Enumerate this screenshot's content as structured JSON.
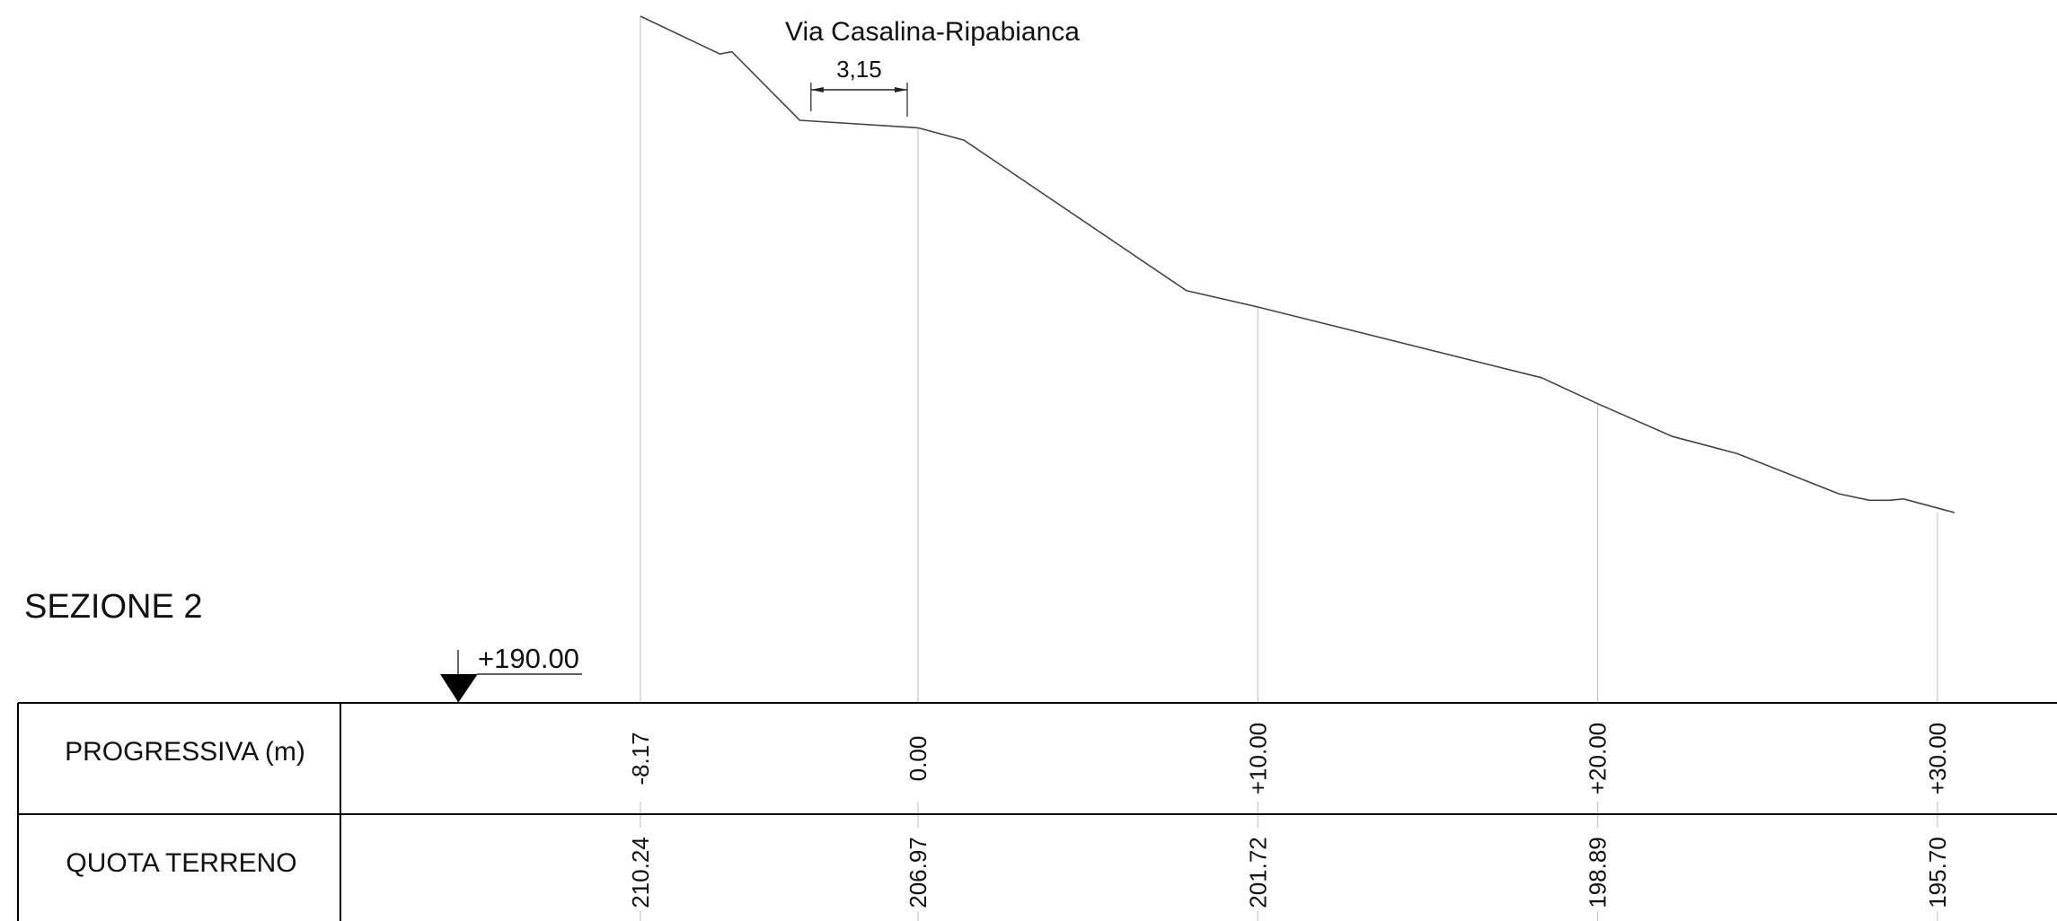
{
  "section_title": "SEZIONE 2",
  "road_label": "Via Casalina-Ripabianca",
  "dimension": {
    "label": "3,15",
    "from_x": -3.15,
    "to_x": 0.0
  },
  "datum": {
    "label": "+190.00",
    "elevation": 190.0
  },
  "table": {
    "row1_label": "PROGRESSIVA (m)",
    "row2_label": "QUOTA TERRENO"
  },
  "stations": [
    {
      "progressiva": "-8.17",
      "quota": "210.24",
      "x": -8.17,
      "z": 210.24
    },
    {
      "progressiva": "0.00",
      "quota": "206.97",
      "x": 0.0,
      "z": 206.97
    },
    {
      "progressiva": "+10.00",
      "quota": "201.72",
      "x": 10.0,
      "z": 201.72
    },
    {
      "progressiva": "+20.00",
      "quota": "198.89",
      "x": 20.0,
      "z": 198.89
    },
    {
      "progressiva": "+30.00",
      "quota": "195.70",
      "x": 30.0,
      "z": 195.7
    }
  ],
  "profile": [
    {
      "x": -8.17,
      "z": 210.24
    },
    {
      "x": -5.83,
      "z": 209.13
    },
    {
      "x": -5.48,
      "z": 209.2
    },
    {
      "x": -3.48,
      "z": 207.19
    },
    {
      "x": 0.0,
      "z": 206.97
    },
    {
      "x": 1.35,
      "z": 206.61
    },
    {
      "x": 7.9,
      "z": 202.2
    },
    {
      "x": 10.0,
      "z": 201.72
    },
    {
      "x": 18.35,
      "z": 199.65
    },
    {
      "x": 20.0,
      "z": 198.89
    },
    {
      "x": 22.2,
      "z": 197.93
    },
    {
      "x": 24.1,
      "z": 197.43
    },
    {
      "x": 27.1,
      "z": 196.25
    },
    {
      "x": 28.0,
      "z": 196.06
    },
    {
      "x": 28.6,
      "z": 196.06
    },
    {
      "x": 29.0,
      "z": 196.1
    },
    {
      "x": 30.5,
      "z": 195.7
    }
  ]
}
